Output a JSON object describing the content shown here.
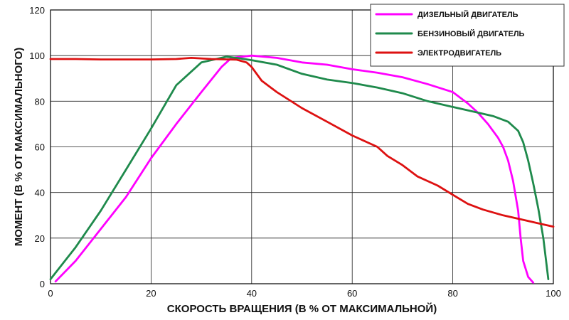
{
  "chart_data": {
    "type": "line",
    "title": "",
    "xlabel": "СКОРОСТЬ ВРАЩЕНИЯ (В % ОТ МАКСИМАЛЬНОЙ)",
    "ylabel": "МОМЕНТ (В % ОТ МАКСИМАЛЬНОГО)",
    "xlim": [
      0,
      100
    ],
    "ylim": [
      0,
      120
    ],
    "xticks": [
      0,
      20,
      40,
      60,
      80,
      100
    ],
    "yticks": [
      0,
      20,
      40,
      60,
      80,
      100,
      120
    ],
    "grid": true,
    "legend_position": "top-right",
    "series": [
      {
        "name": "ДИЗЕЛЬНЫЙ ДВИГАТЕЛЬ",
        "color": "#ff00ff",
        "points": [
          [
            1,
            1
          ],
          [
            5,
            10
          ],
          [
            10,
            24
          ],
          [
            15,
            38
          ],
          [
            20,
            55
          ],
          [
            25,
            70
          ],
          [
            30,
            84
          ],
          [
            34,
            95
          ],
          [
            36,
            99
          ],
          [
            40,
            100
          ],
          [
            45,
            99
          ],
          [
            50,
            97
          ],
          [
            55,
            96
          ],
          [
            60,
            94
          ],
          [
            65,
            92.5
          ],
          [
            70,
            90.5
          ],
          [
            75,
            87.5
          ],
          [
            80,
            84
          ],
          [
            83,
            79
          ],
          [
            85,
            75
          ],
          [
            87,
            70
          ],
          [
            89,
            64
          ],
          [
            90,
            60
          ],
          [
            91,
            54
          ],
          [
            92,
            45
          ],
          [
            93,
            32
          ],
          [
            93.5,
            20
          ],
          [
            94,
            10
          ],
          [
            95,
            3
          ],
          [
            96,
            0.5
          ]
        ]
      },
      {
        "name": "БЕНЗИНОВЫЙ ДВИГАТЕЛЬ",
        "color": "#1f8a4c",
        "points": [
          [
            0,
            2
          ],
          [
            5,
            16
          ],
          [
            10,
            32
          ],
          [
            15,
            50
          ],
          [
            20,
            68
          ],
          [
            25,
            87
          ],
          [
            30,
            97
          ],
          [
            35,
            99.5
          ],
          [
            37,
            99
          ],
          [
            40,
            98
          ],
          [
            45,
            96
          ],
          [
            50,
            92
          ],
          [
            55,
            89.5
          ],
          [
            60,
            88
          ],
          [
            65,
            86
          ],
          [
            70,
            83.5
          ],
          [
            75,
            80
          ],
          [
            80,
            77.5
          ],
          [
            85,
            75
          ],
          [
            88,
            73.5
          ],
          [
            91,
            71
          ],
          [
            93,
            67
          ],
          [
            94,
            62
          ],
          [
            95,
            54
          ],
          [
            96,
            44
          ],
          [
            97,
            33
          ],
          [
            98,
            20
          ],
          [
            99,
            2
          ]
        ]
      },
      {
        "name": "ЭЛЕКТРОДВИГАТЕЛЬ",
        "color": "#dd1111",
        "points": [
          [
            0,
            98.5
          ],
          [
            5,
            98.5
          ],
          [
            10,
            98.3
          ],
          [
            20,
            98.3
          ],
          [
            25,
            98.5
          ],
          [
            28,
            99
          ],
          [
            32,
            98.5
          ],
          [
            37,
            98.2
          ],
          [
            39,
            97
          ],
          [
            40,
            95
          ],
          [
            42,
            89
          ],
          [
            45,
            84
          ],
          [
            50,
            77
          ],
          [
            55,
            71
          ],
          [
            60,
            65
          ],
          [
            63,
            62
          ],
          [
            65,
            60
          ],
          [
            67,
            56
          ],
          [
            70,
            52
          ],
          [
            73,
            47
          ],
          [
            75,
            45
          ],
          [
            77,
            43
          ],
          [
            80,
            39
          ],
          [
            83,
            35
          ],
          [
            86,
            32.5
          ],
          [
            90,
            30
          ],
          [
            95,
            27.5
          ],
          [
            100,
            25
          ]
        ]
      }
    ]
  }
}
